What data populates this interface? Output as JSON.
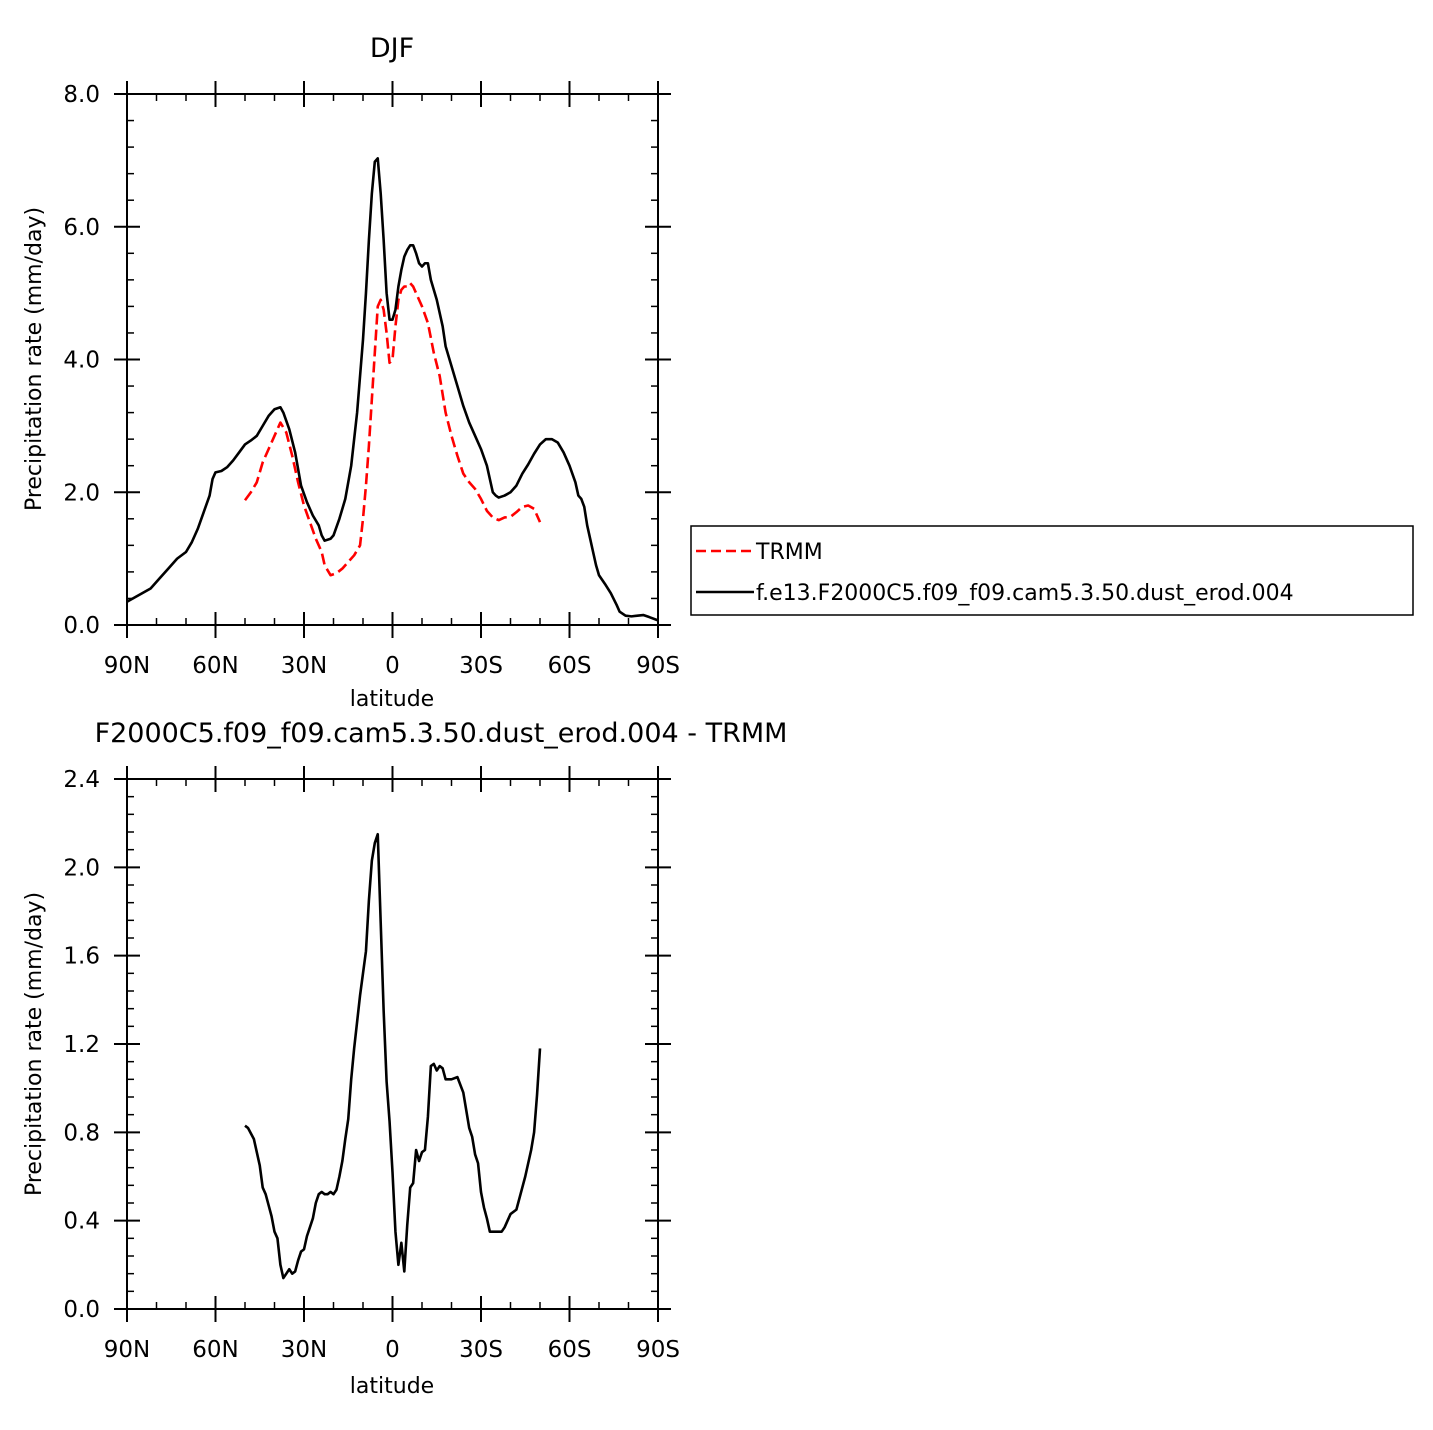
{
  "figure": {
    "charts": [
      {
        "title": "DJF",
        "subtitle": "",
        "xlabel": "latitude",
        "ylabel": "Precipitation rate (mm/day)",
        "x_ticks": [
          "90N",
          "60N",
          "30N",
          "0",
          "30S",
          "60S",
          "90S"
        ],
        "y_ticks": [
          "0.0",
          "2.0",
          "4.0",
          "6.0",
          "8.0"
        ]
      },
      {
        "title": "F2000C5.f09_f09.cam5.3.50.dust_erod.004 - TRMM",
        "subtitle": "",
        "xlabel": "latitude",
        "ylabel": "Precipitation rate (mm/day)",
        "x_ticks": [
          "90N",
          "60N",
          "30N",
          "0",
          "30S",
          "60S",
          "90S"
        ],
        "y_ticks": [
          "0.0",
          "0.4",
          "0.8",
          "1.2",
          "1.6",
          "2.0",
          "2.4"
        ]
      }
    ],
    "legend": {
      "items": [
        {
          "label": "TRMM"
        },
        {
          "label": "f.e13.F2000C5.f09_f09.cam5.3.50.dust_erod.004"
        }
      ]
    }
  },
  "chart_data": [
    {
      "type": "line",
      "title": "DJF",
      "xlabel": "latitude",
      "ylabel": "Precipitation rate (mm/day)",
      "xlim": [
        90,
        -90
      ],
      "ylim": [
        0,
        8
      ],
      "x_ticks": [
        90,
        60,
        30,
        0,
        -30,
        -60,
        -90
      ],
      "y_ticks": [
        0,
        2,
        4,
        6,
        8
      ],
      "grid": false,
      "legend_position": "right",
      "series": [
        {
          "name": "TRMM",
          "color": "#ff0000",
          "dash": "dashed",
          "points": [
            [
              50,
              1.88
            ],
            [
              48,
              2.0
            ],
            [
              46,
              2.15
            ],
            [
              44,
              2.45
            ],
            [
              42,
              2.65
            ],
            [
              40,
              2.85
            ],
            [
              38,
              3.05
            ],
            [
              36,
              2.9
            ],
            [
              34,
              2.55
            ],
            [
              32,
              2.15
            ],
            [
              30,
              1.8
            ],
            [
              28,
              1.55
            ],
            [
              26,
              1.3
            ],
            [
              24,
              1.1
            ],
            [
              23,
              0.9
            ],
            [
              21,
              0.75
            ],
            [
              19,
              0.78
            ],
            [
              17,
              0.85
            ],
            [
              15,
              0.95
            ],
            [
              13,
              1.05
            ],
            [
              11,
              1.2
            ],
            [
              10,
              1.6
            ],
            [
              9,
              2.1
            ],
            [
              8,
              2.7
            ],
            [
              7,
              3.4
            ],
            [
              6,
              4.1
            ],
            [
              5,
              4.8
            ],
            [
              4,
              4.9
            ],
            [
              3,
              4.75
            ],
            [
              2,
              4.4
            ],
            [
              1,
              3.95
            ],
            [
              0,
              4.0
            ],
            [
              -1,
              4.5
            ],
            [
              -2,
              4.9
            ],
            [
              -3,
              5.05
            ],
            [
              -4,
              5.1
            ],
            [
              -5,
              5.1
            ],
            [
              -6,
              5.15
            ],
            [
              -7,
              5.1
            ],
            [
              -8,
              5.0
            ],
            [
              -10,
              4.8
            ],
            [
              -12,
              4.55
            ],
            [
              -14,
              4.1
            ],
            [
              -16,
              3.75
            ],
            [
              -18,
              3.2
            ],
            [
              -20,
              2.85
            ],
            [
              -22,
              2.55
            ],
            [
              -24,
              2.28
            ],
            [
              -26,
              2.15
            ],
            [
              -28,
              2.05
            ],
            [
              -30,
              1.9
            ],
            [
              -32,
              1.72
            ],
            [
              -34,
              1.62
            ],
            [
              -36,
              1.58
            ],
            [
              -38,
              1.62
            ],
            [
              -40,
              1.63
            ],
            [
              -42,
              1.7
            ],
            [
              -44,
              1.78
            ],
            [
              -46,
              1.8
            ],
            [
              -48,
              1.75
            ],
            [
              -50,
              1.55
            ]
          ]
        },
        {
          "name": "f.e13.F2000C5.f09_f09.cam5.3.50.dust_erod.004",
          "color": "#000000",
          "dash": "solid",
          "points": [
            [
              90,
              0.35
            ],
            [
              86,
              0.45
            ],
            [
              82,
              0.55
            ],
            [
              79,
              0.7
            ],
            [
              76,
              0.85
            ],
            [
              73,
              1.0
            ],
            [
              70,
              1.1
            ],
            [
              68,
              1.25
            ],
            [
              66,
              1.45
            ],
            [
              64,
              1.7
            ],
            [
              62,
              1.95
            ],
            [
              61,
              2.2
            ],
            [
              60,
              2.3
            ],
            [
              58,
              2.32
            ],
            [
              56,
              2.38
            ],
            [
              54,
              2.48
            ],
            [
              52,
              2.6
            ],
            [
              50,
              2.72
            ],
            [
              48,
              2.78
            ],
            [
              46,
              2.85
            ],
            [
              44,
              3.0
            ],
            [
              42,
              3.15
            ],
            [
              40,
              3.25
            ],
            [
              38,
              3.28
            ],
            [
              37,
              3.2
            ],
            [
              35,
              2.95
            ],
            [
              33,
              2.6
            ],
            [
              32,
              2.35
            ],
            [
              31,
              2.1
            ],
            [
              29,
              1.85
            ],
            [
              27,
              1.65
            ],
            [
              25,
              1.5
            ],
            [
              24,
              1.35
            ],
            [
              23,
              1.27
            ],
            [
              21,
              1.3
            ],
            [
              20,
              1.35
            ],
            [
              18,
              1.6
            ],
            [
              16,
              1.9
            ],
            [
              14,
              2.4
            ],
            [
              12,
              3.2
            ],
            [
              10,
              4.3
            ],
            [
              9,
              5.0
            ],
            [
              8,
              5.8
            ],
            [
              7,
              6.5
            ],
            [
              6,
              6.98
            ],
            [
              5,
              7.03
            ],
            [
              4,
              6.5
            ],
            [
              3,
              5.8
            ],
            [
              2,
              5.0
            ],
            [
              1,
              4.6
            ],
            [
              0,
              4.6
            ],
            [
              -1,
              4.75
            ],
            [
              -2,
              5.1
            ],
            [
              -3,
              5.35
            ],
            [
              -4,
              5.55
            ],
            [
              -5,
              5.65
            ],
            [
              -6,
              5.72
            ],
            [
              -7,
              5.72
            ],
            [
              -8,
              5.6
            ],
            [
              -9,
              5.45
            ],
            [
              -10,
              5.4
            ],
            [
              -11,
              5.45
            ],
            [
              -12,
              5.45
            ],
            [
              -13,
              5.2
            ],
            [
              -15,
              4.9
            ],
            [
              -17,
              4.5
            ],
            [
              -18,
              4.2
            ],
            [
              -20,
              3.9
            ],
            [
              -22,
              3.6
            ],
            [
              -24,
              3.3
            ],
            [
              -26,
              3.05
            ],
            [
              -28,
              2.85
            ],
            [
              -30,
              2.65
            ],
            [
              -32,
              2.4
            ],
            [
              -33,
              2.2
            ],
            [
              -34,
              2.0
            ],
            [
              -35,
              1.95
            ],
            [
              -36,
              1.92
            ],
            [
              -38,
              1.95
            ],
            [
              -40,
              2.0
            ],
            [
              -42,
              2.1
            ],
            [
              -44,
              2.28
            ],
            [
              -46,
              2.42
            ],
            [
              -48,
              2.58
            ],
            [
              -50,
              2.72
            ],
            [
              -52,
              2.8
            ],
            [
              -54,
              2.8
            ],
            [
              -56,
              2.75
            ],
            [
              -58,
              2.6
            ],
            [
              -60,
              2.4
            ],
            [
              -62,
              2.15
            ],
            [
              -63,
              1.95
            ],
            [
              -64,
              1.9
            ],
            [
              -65,
              1.78
            ],
            [
              -66,
              1.5
            ],
            [
              -67,
              1.3
            ],
            [
              -68,
              1.1
            ],
            [
              -69,
              0.9
            ],
            [
              -70,
              0.75
            ],
            [
              -72,
              0.62
            ],
            [
              -74,
              0.48
            ],
            [
              -76,
              0.3
            ],
            [
              -77,
              0.2
            ],
            [
              -79,
              0.14
            ],
            [
              -81,
              0.13
            ],
            [
              -83,
              0.14
            ],
            [
              -85,
              0.15
            ],
            [
              -87,
              0.12
            ],
            [
              -90,
              0.07
            ]
          ]
        }
      ]
    },
    {
      "type": "line",
      "title": "F2000C5.f09_f09.cam5.3.50.dust_erod.004 - TRMM",
      "xlabel": "latitude",
      "ylabel": "Precipitation rate (mm/day)",
      "xlim": [
        90,
        -90
      ],
      "ylim": [
        0,
        2.4
      ],
      "x_ticks": [
        90,
        60,
        30,
        0,
        -30,
        -60,
        -90
      ],
      "y_ticks": [
        0,
        0.4,
        0.8,
        1.2,
        1.6,
        2.0,
        2.4
      ],
      "grid": false,
      "series": [
        {
          "color": "#000000",
          "dash": "solid",
          "points": [
            [
              50,
              0.83
            ],
            [
              49,
              0.82
            ],
            [
              47,
              0.77
            ],
            [
              45,
              0.65
            ],
            [
              44,
              0.55
            ],
            [
              43,
              0.52
            ],
            [
              42,
              0.47
            ],
            [
              41,
              0.42
            ],
            [
              40,
              0.35
            ],
            [
              39,
              0.32
            ],
            [
              38,
              0.2
            ],
            [
              37,
              0.14
            ],
            [
              36,
              0.16
            ],
            [
              35,
              0.18
            ],
            [
              34,
              0.16
            ],
            [
              33,
              0.17
            ],
            [
              32,
              0.22
            ],
            [
              31,
              0.26
            ],
            [
              30,
              0.27
            ],
            [
              29,
              0.33
            ],
            [
              28,
              0.37
            ],
            [
              27,
              0.41
            ],
            [
              26,
              0.48
            ],
            [
              25,
              0.52
            ],
            [
              24,
              0.53
            ],
            [
              23,
              0.52
            ],
            [
              22,
              0.52
            ],
            [
              21,
              0.53
            ],
            [
              20,
              0.52
            ],
            [
              19,
              0.54
            ],
            [
              18,
              0.6
            ],
            [
              17,
              0.67
            ],
            [
              16,
              0.77
            ],
            [
              15,
              0.86
            ],
            [
              14,
              1.04
            ],
            [
              13,
              1.18
            ],
            [
              12,
              1.3
            ],
            [
              11,
              1.42
            ],
            [
              10,
              1.52
            ],
            [
              9,
              1.62
            ],
            [
              8,
              1.85
            ],
            [
              7,
              2.03
            ],
            [
              6,
              2.11
            ],
            [
              5,
              2.15
            ],
            [
              4,
              1.75
            ],
            [
              3,
              1.35
            ],
            [
              2,
              1.03
            ],
            [
              1,
              0.85
            ],
            [
              0,
              0.62
            ],
            [
              -1,
              0.35
            ],
            [
              -2,
              0.2
            ],
            [
              -3,
              0.3
            ],
            [
              -4,
              0.17
            ],
            [
              -5,
              0.38
            ],
            [
              -6,
              0.55
            ],
            [
              -7,
              0.57
            ],
            [
              -8,
              0.72
            ],
            [
              -9,
              0.67
            ],
            [
              -10,
              0.71
            ],
            [
              -11,
              0.72
            ],
            [
              -12,
              0.87
            ],
            [
              -13,
              1.1
            ],
            [
              -14,
              1.11
            ],
            [
              -15,
              1.08
            ],
            [
              -16,
              1.1
            ],
            [
              -17,
              1.09
            ],
            [
              -18,
              1.04
            ],
            [
              -20,
              1.04
            ],
            [
              -22,
              1.05
            ],
            [
              -24,
              0.98
            ],
            [
              -25,
              0.9
            ],
            [
              -26,
              0.82
            ],
            [
              -27,
              0.78
            ],
            [
              -28,
              0.7
            ],
            [
              -29,
              0.66
            ],
            [
              -30,
              0.53
            ],
            [
              -31,
              0.46
            ],
            [
              -32,
              0.41
            ],
            [
              -33,
              0.35
            ],
            [
              -35,
              0.35
            ],
            [
              -37,
              0.35
            ],
            [
              -38,
              0.37
            ],
            [
              -39,
              0.4
            ],
            [
              -40,
              0.43
            ],
            [
              -42,
              0.45
            ],
            [
              -44,
              0.55
            ],
            [
              -45,
              0.6
            ],
            [
              -47,
              0.72
            ],
            [
              -48,
              0.8
            ],
            [
              -49,
              0.97
            ],
            [
              -50,
              1.18
            ]
          ]
        }
      ]
    }
  ]
}
